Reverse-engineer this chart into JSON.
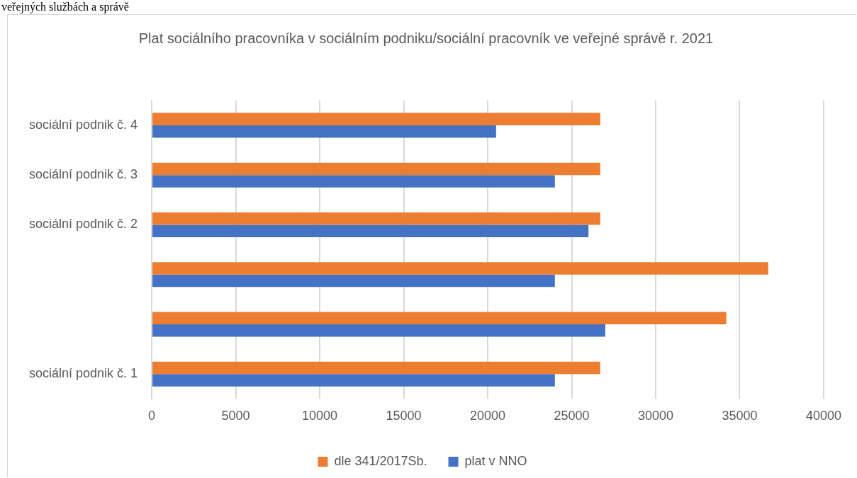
{
  "chart_data": {
    "type": "bar",
    "orientation": "horizontal",
    "title": "Plat sociálního pracovníka v sociálním podniku/sociální pracovník ve veřejné správě r. 2021",
    "annotations": [
      "veřejných službách a správě"
    ],
    "categories": [
      "sociální podnik č. 4",
      "sociální podnik č. 3",
      "sociální podnik č. 2",
      null,
      null,
      "sociální podnik č. 1"
    ],
    "series": [
      {
        "name": "dle 341/2017Sb.",
        "color": "#ed7d31",
        "values": [
          26700,
          26700,
          26700,
          36700,
          34200,
          26700
        ]
      },
      {
        "name": "plat v NNO",
        "color": "#4472c4",
        "values": [
          20500,
          24000,
          26000,
          24000,
          27000,
          24000
        ]
      }
    ],
    "xlim": [
      0,
      40000
    ],
    "xticks": [
      0,
      5000,
      10000,
      15000,
      20000,
      25000,
      30000,
      35000,
      40000
    ],
    "grid": "x",
    "legend": "bottom"
  }
}
